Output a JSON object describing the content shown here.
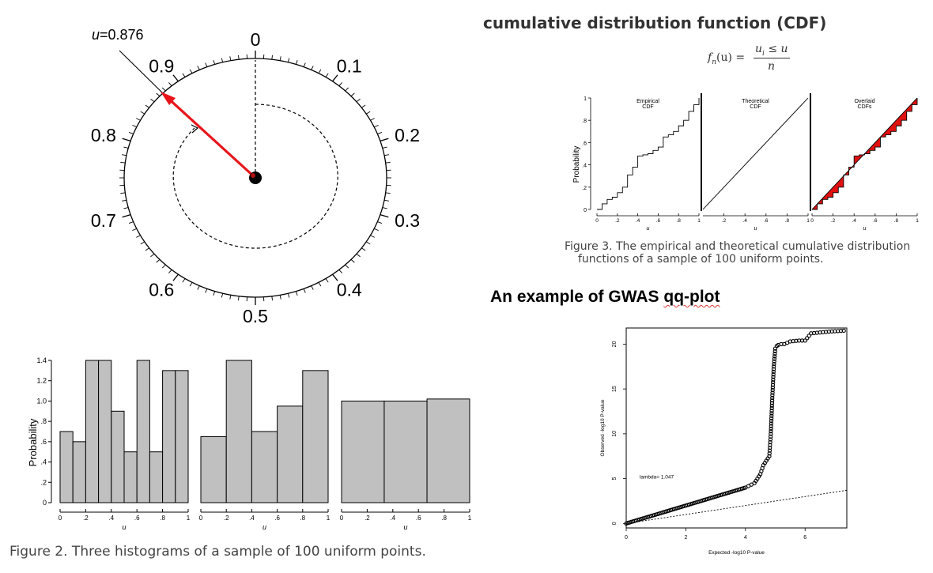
{
  "dial": {
    "u_label": "u",
    "u_value": "=0.876",
    "u": 0.876,
    "labels": [
      {
        "t": "0",
        "v": 0.0
      },
      {
        "t": "0.1",
        "v": 0.1
      },
      {
        "t": "0.2",
        "v": 0.2
      },
      {
        "t": "0.3",
        "v": 0.3
      },
      {
        "t": "0.4",
        "v": 0.4
      },
      {
        "t": "0.5",
        "v": 0.5
      },
      {
        "t": "0.6",
        "v": 0.6
      },
      {
        "t": "0.7",
        "v": 0.7
      },
      {
        "t": "0.8",
        "v": 0.8
      },
      {
        "t": "0.9",
        "v": 0.9
      }
    ],
    "colors": {
      "needle": "#e8141a",
      "hub": "#000000"
    }
  },
  "histograms": {
    "ylabel": "Probability",
    "xlabel": "u",
    "yticks": [
      "0",
      ".2",
      ".4",
      ".6",
      ".8",
      "1.0",
      "1.2",
      "1.4"
    ],
    "xticks": [
      "0",
      ".2",
      ".4",
      ".6",
      ".8",
      "1"
    ],
    "fill": "#c0c0c0",
    "caption": "Figure 2. Three histograms of a sample of 100 uniform points."
  },
  "cdf_section": {
    "title": "cumulative distribution function (CDF)",
    "formula": {
      "lhs": "f",
      "lhs_sub": "n",
      "lhs_arg": "(u) =",
      "num": "u",
      "num_sub": "i",
      "num_rest": " ≤ u",
      "den": "n"
    },
    "caption_line1": "Figure 3. The empirical and theoretical cumulative distribution",
    "caption_line2": "functions of a sample of 100 uniform points."
  },
  "gwas_section": {
    "title_prefix": "An example of GWAS ",
    "title_suffix": "qq-plot"
  },
  "chart_data": [
    {
      "type": "bar",
      "title": "",
      "xlabel": "u",
      "ylabel": "Probability",
      "ylim": [
        0,
        1.4
      ],
      "bins": [
        [
          0.0,
          0.1,
          0.7
        ],
        [
          0.1,
          0.2,
          0.6
        ],
        [
          0.2,
          0.3,
          1.4
        ],
        [
          0.3,
          0.4,
          1.4
        ],
        [
          0.4,
          0.5,
          0.9
        ],
        [
          0.5,
          0.6,
          0.5
        ],
        [
          0.6,
          0.7,
          1.4
        ],
        [
          0.7,
          0.8,
          0.5
        ],
        [
          0.8,
          0.9,
          1.3
        ],
        [
          0.9,
          1.0,
          1.3
        ]
      ]
    },
    {
      "type": "bar",
      "title": "",
      "xlabel": "u",
      "ylabel": "Probability",
      "ylim": [
        0,
        1.4
      ],
      "bins": [
        [
          0.0,
          0.2,
          0.65
        ],
        [
          0.2,
          0.4,
          1.4
        ],
        [
          0.4,
          0.6,
          0.7
        ],
        [
          0.6,
          0.8,
          0.95
        ],
        [
          0.8,
          1.0,
          1.3
        ]
      ]
    },
    {
      "type": "bar",
      "title": "",
      "xlabel": "u",
      "ylabel": "Probability",
      "ylim": [
        0,
        1.4
      ],
      "bins": [
        [
          0.0,
          0.333,
          1.0
        ],
        [
          0.333,
          0.667,
          1.0
        ],
        [
          0.667,
          1.0,
          1.02
        ]
      ]
    },
    {
      "type": "line",
      "title": "Empirical CDF",
      "xlabel": "u",
      "ylabel": "Probability",
      "xlim": [
        0,
        1
      ],
      "ylim": [
        0,
        1
      ],
      "yticks": [
        "0",
        ".2",
        ".4",
        ".6",
        ".8",
        "1"
      ],
      "xticks": [
        "0",
        ".2",
        ".4",
        ".6",
        ".8",
        "1"
      ],
      "x": [
        0.0,
        0.05,
        0.1,
        0.15,
        0.2,
        0.25,
        0.3,
        0.35,
        0.4,
        0.45,
        0.5,
        0.55,
        0.6,
        0.65,
        0.7,
        0.75,
        0.8,
        0.85,
        0.9,
        0.95,
        1.0
      ],
      "y": [
        0.0,
        0.05,
        0.09,
        0.11,
        0.15,
        0.2,
        0.31,
        0.38,
        0.48,
        0.49,
        0.5,
        0.53,
        0.56,
        0.65,
        0.67,
        0.7,
        0.75,
        0.8,
        0.88,
        0.94,
        1.0
      ]
    },
    {
      "type": "line",
      "title": "Theoretical CDF",
      "xlabel": "u",
      "xlim": [
        0,
        1
      ],
      "ylim": [
        0,
        1
      ],
      "xticks": [
        ".2",
        ".4",
        ".6",
        ".8",
        "1"
      ],
      "x": [
        0,
        1
      ],
      "y": [
        0,
        1
      ]
    },
    {
      "type": "area",
      "title": "Overlaid CDFs",
      "xlabel": "u",
      "xlim": [
        0,
        1
      ],
      "ylim": [
        0,
        1
      ],
      "xticks": [
        "0",
        ".2",
        ".4",
        ".6",
        ".8",
        "1"
      ],
      "fill": "#e01010"
    },
    {
      "type": "scatter",
      "title": "",
      "xlabel": "Expected -log10 P-value",
      "ylabel": "Observed -log10 P-value",
      "xlim": [
        0,
        7.4
      ],
      "ylim": [
        -0.5,
        21.8
      ],
      "xticks": [
        "0",
        "2",
        "4",
        "6"
      ],
      "yticks": [
        "0",
        "5",
        "10",
        "15",
        "20"
      ],
      "annotation": "lambda= 1.047",
      "reference_line_slope": 1.0,
      "series": [
        {
          "x": [
            0.0,
            0.5,
            1.0,
            1.5,
            2.0,
            2.5,
            3.0,
            3.5,
            4.0,
            4.3,
            4.5,
            4.6,
            4.7,
            4.8,
            4.85,
            4.9,
            4.95,
            5.0,
            5.05,
            5.1,
            5.2,
            5.3,
            5.5,
            5.8,
            6.0,
            6.2,
            6.5,
            6.8,
            7.3
          ],
          "y": [
            0.0,
            0.5,
            1.0,
            1.5,
            2.0,
            2.5,
            3.0,
            3.5,
            4.0,
            4.5,
            5.5,
            6.5,
            7.0,
            7.5,
            10.0,
            14.0,
            17.5,
            19.5,
            19.8,
            19.9,
            20.0,
            20.0,
            20.3,
            20.4,
            20.4,
            21.2,
            21.3,
            21.4,
            21.5
          ]
        }
      ]
    }
  ]
}
